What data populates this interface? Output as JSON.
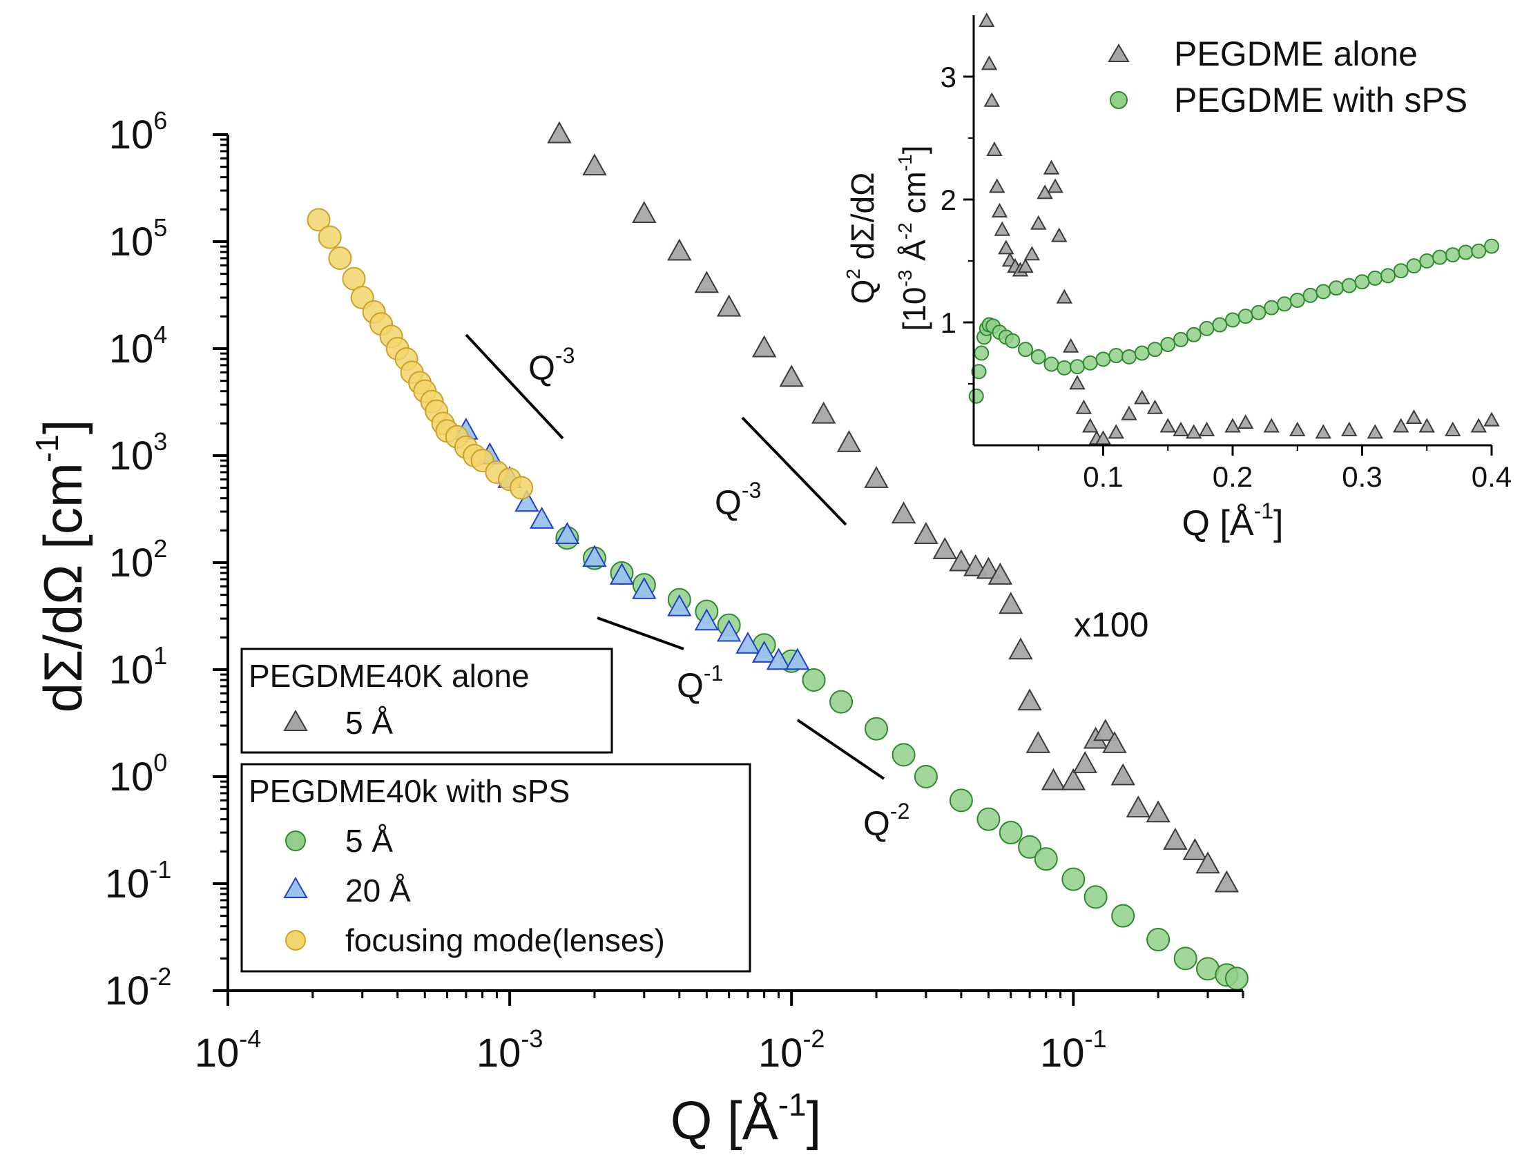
{
  "chart_data": [
    {
      "type": "scatter",
      "scale": "log-log",
      "xlabel": {
        "base": "Q [Å",
        "sup": "-1",
        "end": "]"
      },
      "ylabel": {
        "base": "dΣ/dΩ [cm",
        "sup": "-1",
        "end": "]"
      },
      "xlim": [
        0.0001,
        0.4
      ],
      "ylim": [
        0.01,
        1000000
      ],
      "x_ticks": [
        {
          "base": "10",
          "exp": "-4",
          "value": 0.0001
        },
        {
          "base": "10",
          "exp": "-3",
          "value": 0.001
        },
        {
          "base": "10",
          "exp": "-2",
          "value": 0.01
        },
        {
          "base": "10",
          "exp": "-1",
          "value": 0.1
        }
      ],
      "y_ticks": [
        {
          "base": "10",
          "exp": "6",
          "value": 1000000
        },
        {
          "base": "10",
          "exp": "5",
          "value": 100000
        },
        {
          "base": "10",
          "exp": "4",
          "value": 10000
        },
        {
          "base": "10",
          "exp": "3",
          "value": 1000
        },
        {
          "base": "10",
          "exp": "2",
          "value": 100
        },
        {
          "base": "10",
          "exp": "1",
          "value": 10
        },
        {
          "base": "10",
          "exp": "0",
          "value": 1
        },
        {
          "base": "10",
          "exp": "-1",
          "value": 0.1
        },
        {
          "base": "10",
          "exp": "-2",
          "value": 0.01
        }
      ],
      "series": [
        {
          "name": "PEGDME40K alone, 5 Å (x100)",
          "marker": "triangle",
          "color": "#a6a6a6",
          "stroke": "#3a3a3a",
          "points": [
            [
              0.0015,
              1000000
            ],
            [
              0.002,
              500000
            ],
            [
              0.003,
              180000
            ],
            [
              0.004,
              80000
            ],
            [
              0.005,
              40000
            ],
            [
              0.006,
              24000
            ],
            [
              0.008,
              10000
            ],
            [
              0.01,
              5300
            ],
            [
              0.013,
              2400
            ],
            [
              0.016,
              1300
            ],
            [
              0.02,
              600
            ],
            [
              0.025,
              280
            ],
            [
              0.03,
              180
            ],
            [
              0.035,
              130
            ],
            [
              0.04,
              100
            ],
            [
              0.045,
              90
            ],
            [
              0.05,
              85
            ],
            [
              0.055,
              75
            ],
            [
              0.06,
              40
            ],
            [
              0.065,
              15
            ],
            [
              0.07,
              5
            ],
            [
              0.075,
              2
            ],
            [
              0.085,
              0.9
            ],
            [
              0.1,
              0.9
            ],
            [
              0.11,
              1.3
            ],
            [
              0.12,
              2.2
            ],
            [
              0.13,
              2.6
            ],
            [
              0.14,
              2.0
            ],
            [
              0.15,
              1.0
            ],
            [
              0.17,
              0.5
            ],
            [
              0.2,
              0.45
            ],
            [
              0.23,
              0.25
            ],
            [
              0.27,
              0.2
            ],
            [
              0.3,
              0.15
            ],
            [
              0.35,
              0.1
            ]
          ]
        },
        {
          "name": "PEGDME40k with sPS, 5 Å",
          "marker": "circle",
          "color": "#92d08a",
          "stroke": "#2d8a2d",
          "points": [
            [
              0.0016,
              170
            ],
            [
              0.002,
              110
            ],
            [
              0.0025,
              80
            ],
            [
              0.003,
              62
            ],
            [
              0.004,
              45
            ],
            [
              0.005,
              35
            ],
            [
              0.006,
              26
            ],
            [
              0.008,
              17
            ],
            [
              0.01,
              12
            ],
            [
              0.012,
              8
            ],
            [
              0.015,
              5
            ],
            [
              0.02,
              2.8
            ],
            [
              0.025,
              1.6
            ],
            [
              0.03,
              1.0
            ],
            [
              0.04,
              0.6
            ],
            [
              0.05,
              0.4
            ],
            [
              0.06,
              0.3
            ],
            [
              0.07,
              0.22
            ],
            [
              0.08,
              0.17
            ],
            [
              0.1,
              0.11
            ],
            [
              0.12,
              0.075
            ],
            [
              0.15,
              0.05
            ],
            [
              0.2,
              0.03
            ],
            [
              0.25,
              0.02
            ],
            [
              0.3,
              0.016
            ],
            [
              0.35,
              0.014
            ],
            [
              0.38,
              0.013
            ]
          ]
        },
        {
          "name": "PEGDME40k with sPS, 20 Å",
          "marker": "triangle",
          "color": "#9cc3ec",
          "stroke": "#1f3fcf",
          "points": [
            [
              0.0007,
              1700
            ],
            [
              0.00085,
              1000
            ],
            [
              0.001,
              600
            ],
            [
              0.00115,
              360
            ],
            [
              0.0013,
              250
            ],
            [
              0.0016,
              180
            ],
            [
              0.002,
              110
            ],
            [
              0.0025,
              75
            ],
            [
              0.003,
              55
            ],
            [
              0.004,
              38
            ],
            [
              0.005,
              28
            ],
            [
              0.006,
              22
            ],
            [
              0.007,
              17
            ],
            [
              0.008,
              14
            ],
            [
              0.009,
              12
            ],
            [
              0.0105,
              12
            ]
          ]
        },
        {
          "name": "PEGDME40k with sPS, focusing mode(lenses)",
          "marker": "circle",
          "color": "#f2d56b",
          "stroke": "#c9a227",
          "points": [
            [
              0.00021,
              160000
            ],
            [
              0.00023,
              110000
            ],
            [
              0.00025,
              70000
            ],
            [
              0.00028,
              45000
            ],
            [
              0.0003,
              30000
            ],
            [
              0.00033,
              22000
            ],
            [
              0.00035,
              17000
            ],
            [
              0.00038,
              13000
            ],
            [
              0.0004,
              10000
            ],
            [
              0.00043,
              8000
            ],
            [
              0.00045,
              6000
            ],
            [
              0.00048,
              4800
            ],
            [
              0.0005,
              4000
            ],
            [
              0.00053,
              3200
            ],
            [
              0.00055,
              2600
            ],
            [
              0.00058,
              2000
            ],
            [
              0.0006,
              1700
            ],
            [
              0.00065,
              1500
            ],
            [
              0.0007,
              1200
            ],
            [
              0.00075,
              1000
            ],
            [
              0.0008,
              900
            ],
            [
              0.0009,
              700
            ],
            [
              0.001,
              600
            ],
            [
              0.0011,
              500
            ]
          ]
        }
      ],
      "annotations": [
        {
          "text": "Q",
          "sup": "-3"
        },
        {
          "text": "Q",
          "sup": "-3"
        },
        {
          "text": "Q",
          "sup": "-1"
        },
        {
          "text": "Q",
          "sup": "-2"
        },
        {
          "text": "x100"
        }
      ],
      "legend": [
        {
          "group_title": "PEGDME40K alone",
          "entries": [
            {
              "label": "5 Å",
              "marker": "triangle",
              "color": "#a6a6a6",
              "stroke": "#3a3a3a"
            }
          ]
        },
        {
          "group_title": "PEGDME40k with sPS",
          "entries": [
            {
              "label": "5 Å",
              "marker": "circle",
              "color": "#92d08a",
              "stroke": "#2d8a2d"
            },
            {
              "label": "20 Å",
              "marker": "triangle",
              "color": "#9cc3ec",
              "stroke": "#1f3fcf"
            },
            {
              "label": "focusing mode(lenses)",
              "marker": "circle",
              "color": "#f2d56b",
              "stroke": "#c9a227"
            }
          ]
        }
      ]
    },
    {
      "type": "scatter",
      "scale": "linear",
      "inset": true,
      "xlabel": {
        "base": "Q [Å",
        "sup": "-1",
        "end": "]"
      },
      "ylabel_line1": {
        "base": "Q",
        "sup": "2",
        "end": " dΣ/dΩ"
      },
      "ylabel_line2": {
        "base": "[10",
        "sup": "-3",
        "mid": " Å",
        "sup2": "-2",
        "end": " cm",
        "sup3": "-1",
        "end2": "]"
      },
      "xlim": [
        0.0,
        0.4
      ],
      "ylim": [
        0.0,
        3.5
      ],
      "x_ticks": [
        "0.1",
        "0.2",
        "0.3",
        "0.4"
      ],
      "y_ticks": [
        "1",
        "2",
        "3"
      ],
      "series": [
        {
          "name": "PEGDME alone",
          "marker": "triangle",
          "color": "#a6a6a6",
          "stroke": "#3a3a3a",
          "points": [
            [
              0.01,
              3.45
            ],
            [
              0.012,
              3.1
            ],
            [
              0.014,
              2.8
            ],
            [
              0.016,
              2.4
            ],
            [
              0.018,
              2.1
            ],
            [
              0.02,
              1.9
            ],
            [
              0.022,
              1.75
            ],
            [
              0.025,
              1.6
            ],
            [
              0.028,
              1.5
            ],
            [
              0.032,
              1.45
            ],
            [
              0.036,
              1.42
            ],
            [
              0.04,
              1.45
            ],
            [
              0.045,
              1.55
            ],
            [
              0.05,
              1.8
            ],
            [
              0.055,
              2.05
            ],
            [
              0.06,
              2.25
            ],
            [
              0.063,
              2.1
            ],
            [
              0.066,
              1.7
            ],
            [
              0.07,
              1.2
            ],
            [
              0.075,
              0.8
            ],
            [
              0.08,
              0.5
            ],
            [
              0.085,
              0.3
            ],
            [
              0.09,
              0.15
            ],
            [
              0.095,
              0.05
            ],
            [
              0.1,
              0.05
            ],
            [
              0.11,
              0.1
            ],
            [
              0.12,
              0.25
            ],
            [
              0.13,
              0.38
            ],
            [
              0.14,
              0.3
            ],
            [
              0.15,
              0.15
            ],
            [
              0.16,
              0.12
            ],
            [
              0.17,
              0.1
            ],
            [
              0.18,
              0.12
            ],
            [
              0.2,
              0.15
            ],
            [
              0.21,
              0.18
            ],
            [
              0.23,
              0.15
            ],
            [
              0.25,
              0.12
            ],
            [
              0.27,
              0.1
            ],
            [
              0.29,
              0.12
            ],
            [
              0.31,
              0.1
            ],
            [
              0.33,
              0.15
            ],
            [
              0.34,
              0.22
            ],
            [
              0.35,
              0.15
            ],
            [
              0.37,
              0.12
            ],
            [
              0.39,
              0.15
            ],
            [
              0.4,
              0.2
            ]
          ]
        },
        {
          "name": "PEGDME with sPS",
          "marker": "circle",
          "color": "#92d08a",
          "stroke": "#2d8a2d",
          "points": [
            [
              0.002,
              0.4
            ],
            [
              0.004,
              0.6
            ],
            [
              0.006,
              0.75
            ],
            [
              0.008,
              0.88
            ],
            [
              0.01,
              0.95
            ],
            [
              0.012,
              0.98
            ],
            [
              0.015,
              0.97
            ],
            [
              0.02,
              0.92
            ],
            [
              0.025,
              0.88
            ],
            [
              0.03,
              0.85
            ],
            [
              0.04,
              0.78
            ],
            [
              0.05,
              0.72
            ],
            [
              0.06,
              0.66
            ],
            [
              0.07,
              0.63
            ],
            [
              0.08,
              0.64
            ],
            [
              0.09,
              0.67
            ],
            [
              0.1,
              0.7
            ],
            [
              0.11,
              0.73
            ],
            [
              0.12,
              0.72
            ],
            [
              0.13,
              0.75
            ],
            [
              0.14,
              0.78
            ],
            [
              0.15,
              0.82
            ],
            [
              0.16,
              0.86
            ],
            [
              0.17,
              0.9
            ],
            [
              0.18,
              0.95
            ],
            [
              0.19,
              0.98
            ],
            [
              0.2,
              1.02
            ],
            [
              0.21,
              1.05
            ],
            [
              0.22,
              1.08
            ],
            [
              0.23,
              1.12
            ],
            [
              0.24,
              1.15
            ],
            [
              0.25,
              1.18
            ],
            [
              0.26,
              1.22
            ],
            [
              0.27,
              1.25
            ],
            [
              0.28,
              1.28
            ],
            [
              0.29,
              1.3
            ],
            [
              0.3,
              1.33
            ],
            [
              0.31,
              1.36
            ],
            [
              0.32,
              1.38
            ],
            [
              0.33,
              1.42
            ],
            [
              0.34,
              1.46
            ],
            [
              0.35,
              1.5
            ],
            [
              0.36,
              1.53
            ],
            [
              0.37,
              1.55
            ],
            [
              0.38,
              1.57
            ],
            [
              0.39,
              1.58
            ],
            [
              0.4,
              1.62
            ]
          ]
        }
      ],
      "legend": [
        {
          "label": "PEGDME alone",
          "marker": "triangle",
          "color": "#a6a6a6",
          "stroke": "#3a3a3a"
        },
        {
          "label": "PEGDME with sPS",
          "marker": "circle",
          "color": "#92d08a",
          "stroke": "#2d8a2d"
        }
      ]
    }
  ]
}
